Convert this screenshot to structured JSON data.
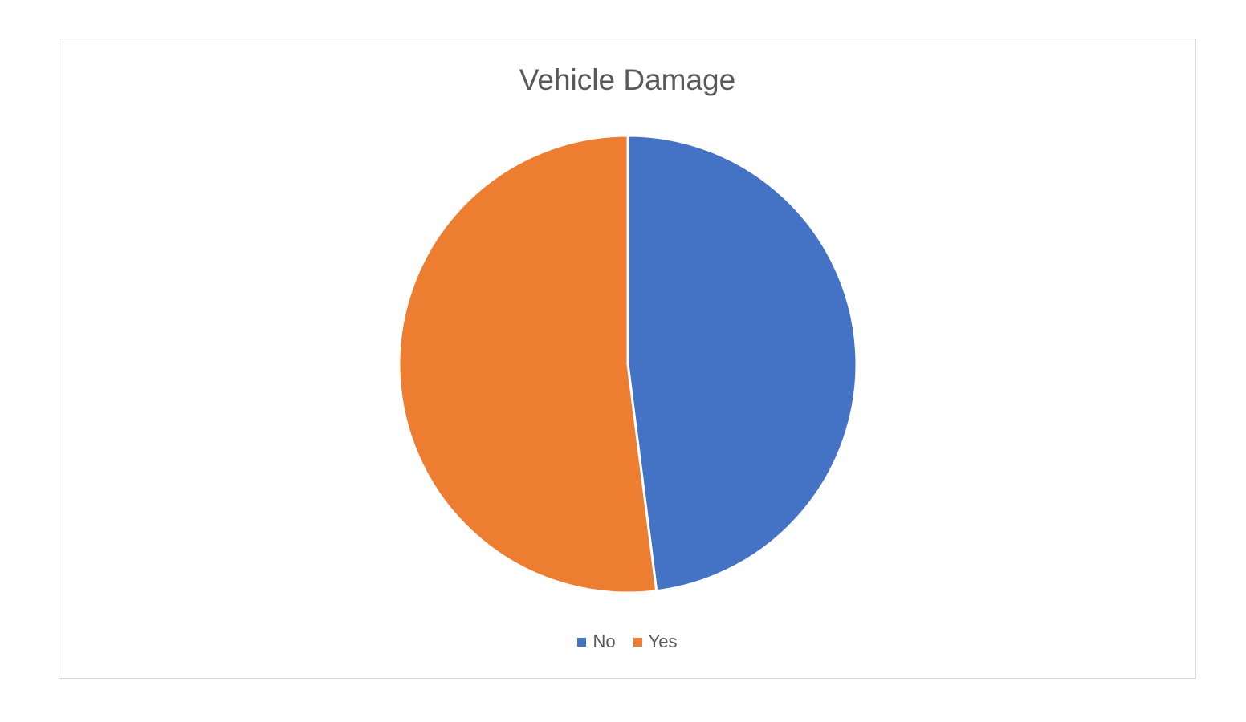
{
  "chart_data": {
    "type": "pie",
    "title": "Vehicle Damage",
    "categories": [
      "No",
      "Yes"
    ],
    "values": [
      48,
      52
    ],
    "colors": [
      "#4472c4",
      "#ed7d31"
    ],
    "start_angle_deg": 0,
    "direction": "clockwise",
    "legend": {
      "position": "bottom",
      "items": [
        {
          "label": "No",
          "color": "#4472c4"
        },
        {
          "label": "Yes",
          "color": "#ed7d31"
        }
      ]
    }
  }
}
